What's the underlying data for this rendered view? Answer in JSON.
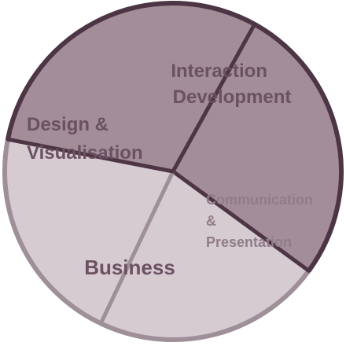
{
  "chart_data": {
    "type": "pie",
    "slices": [
      {
        "label_lines": [
          "Interaction",
          "Development"
        ],
        "value": 27,
        "color": "#a38d98",
        "text_color": "#6b5161"
      },
      {
        "label_lines": [
          "Communication",
          "&",
          "Presentation"
        ],
        "value": 22,
        "color": "#d7cbd2",
        "text_color": "#8f7d88"
      },
      {
        "label_lines": [
          "Business"
        ],
        "value": 21,
        "color": "#d7cbd2",
        "text_color": "#6b5161"
      },
      {
        "label_lines": [
          "Design &",
          "Visualisation"
        ],
        "value": 30,
        "color": "#a38d98",
        "text_color": "#6b5161"
      }
    ],
    "colors": {
      "dark_border": "#4d3545",
      "light_border": "#9e8f98"
    }
  }
}
